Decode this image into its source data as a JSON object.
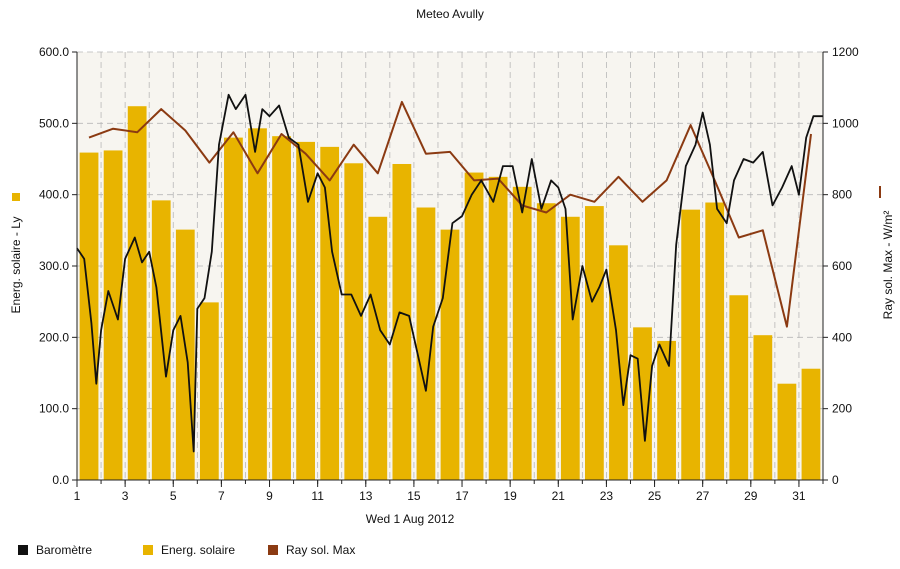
{
  "chart_data": {
    "type": "bar",
    "title": "Meteo  Avully",
    "xlabel": "Wed 1 Aug 2012",
    "ylabel_left": "Energ. solaire - Ly",
    "ylabel_right": "Ray sol. Max - W/m²",
    "ylim_left": [
      0,
      600
    ],
    "ylim_right": [
      0,
      1200
    ],
    "y_ticks_left": [
      "0.0",
      "100.0",
      "200.0",
      "300.0",
      "400.0",
      "500.0",
      "600.0"
    ],
    "y_ticks_right": [
      "0",
      "200",
      "400",
      "600",
      "800",
      "1000",
      "1200"
    ],
    "x_ticks": [
      "1",
      "3",
      "5",
      "7",
      "9",
      "11",
      "13",
      "15",
      "17",
      "19",
      "21",
      "23",
      "25",
      "27",
      "29",
      "31"
    ],
    "days": [
      1,
      2,
      3,
      4,
      5,
      6,
      7,
      8,
      9,
      10,
      11,
      12,
      13,
      14,
      15,
      16,
      17,
      18,
      19,
      20,
      21,
      22,
      23,
      24,
      25,
      26,
      27,
      28,
      29,
      30,
      31,
      32
    ],
    "grid": true,
    "legend_position": "bottom",
    "series": [
      {
        "name": "Energ. solaire",
        "kind": "bar",
        "axis": "left",
        "color": "#E8B400",
        "values": [
          459,
          462,
          524,
          392,
          351,
          249,
          480,
          493,
          482,
          474,
          467,
          444,
          369,
          443,
          382,
          351,
          431,
          425,
          411,
          388,
          369,
          384,
          329,
          214,
          195,
          379,
          389,
          259,
          203,
          135,
          156
        ]
      },
      {
        "name": "Ray sol. Max",
        "kind": "line",
        "axis": "right",
        "color": "#8B3A12",
        "values": [
          [
            1.5,
            960
          ],
          [
            2.5,
            985
          ],
          [
            3.5,
            975
          ],
          [
            4.5,
            1040
          ],
          [
            5.5,
            980
          ],
          [
            6.5,
            890
          ],
          [
            7.5,
            975
          ],
          [
            8.5,
            860
          ],
          [
            9.5,
            970
          ],
          [
            10.5,
            915
          ],
          [
            11.5,
            840
          ],
          [
            12.5,
            940
          ],
          [
            13.5,
            860
          ],
          [
            14.5,
            1060
          ],
          [
            15.5,
            915
          ],
          [
            16.5,
            920
          ],
          [
            17.5,
            840
          ],
          [
            18.5,
            845
          ],
          [
            19.5,
            770
          ],
          [
            20.5,
            750
          ],
          [
            21.5,
            800
          ],
          [
            22.5,
            780
          ],
          [
            23.5,
            850
          ],
          [
            24.5,
            780
          ],
          [
            25.5,
            840
          ],
          [
            26.5,
            995
          ],
          [
            27.5,
            840
          ],
          [
            28.5,
            680
          ],
          [
            29.5,
            700
          ],
          [
            30.5,
            430
          ],
          [
            31.5,
            970
          ]
        ]
      },
      {
        "name": "Baromètre",
        "kind": "line",
        "axis": "left",
        "color": "#111111",
        "values": [
          [
            1.0,
            325
          ],
          [
            1.3,
            310
          ],
          [
            1.6,
            220
          ],
          [
            1.8,
            135
          ],
          [
            2.0,
            210
          ],
          [
            2.3,
            265
          ],
          [
            2.7,
            225
          ],
          [
            3.0,
            310
          ],
          [
            3.4,
            340
          ],
          [
            3.7,
            305
          ],
          [
            4.0,
            320
          ],
          [
            4.3,
            270
          ],
          [
            4.7,
            145
          ],
          [
            5.0,
            210
          ],
          [
            5.3,
            230
          ],
          [
            5.6,
            165
          ],
          [
            5.85,
            40
          ],
          [
            6.0,
            240
          ],
          [
            6.3,
            255
          ],
          [
            6.6,
            320
          ],
          [
            6.9,
            470
          ],
          [
            7.3,
            540
          ],
          [
            7.6,
            520
          ],
          [
            8.0,
            540
          ],
          [
            8.4,
            460
          ],
          [
            8.7,
            520
          ],
          [
            9.0,
            510
          ],
          [
            9.4,
            525
          ],
          [
            9.8,
            480
          ],
          [
            10.2,
            470
          ],
          [
            10.6,
            390
          ],
          [
            11.0,
            430
          ],
          [
            11.3,
            410
          ],
          [
            11.6,
            320
          ],
          [
            12.0,
            260
          ],
          [
            12.4,
            260
          ],
          [
            12.8,
            230
          ],
          [
            13.2,
            260
          ],
          [
            13.6,
            210
          ],
          [
            14.0,
            190
          ],
          [
            14.4,
            235
          ],
          [
            14.8,
            230
          ],
          [
            15.2,
            170
          ],
          [
            15.5,
            125
          ],
          [
            15.8,
            215
          ],
          [
            16.2,
            255
          ],
          [
            16.6,
            360
          ],
          [
            17.0,
            370
          ],
          [
            17.4,
            400
          ],
          [
            17.8,
            420
          ],
          [
            18.3,
            390
          ],
          [
            18.7,
            440
          ],
          [
            19.1,
            440
          ],
          [
            19.5,
            375
          ],
          [
            19.9,
            450
          ],
          [
            20.3,
            380
          ],
          [
            20.7,
            420
          ],
          [
            21.0,
            410
          ],
          [
            21.3,
            380
          ],
          [
            21.6,
            225
          ],
          [
            22.0,
            300
          ],
          [
            22.4,
            250
          ],
          [
            22.7,
            270
          ],
          [
            23.0,
            295
          ],
          [
            23.4,
            210
          ],
          [
            23.7,
            105
          ],
          [
            24.0,
            175
          ],
          [
            24.3,
            170
          ],
          [
            24.6,
            55
          ],
          [
            24.9,
            160
          ],
          [
            25.2,
            190
          ],
          [
            25.6,
            160
          ],
          [
            25.9,
            330
          ],
          [
            26.3,
            440
          ],
          [
            26.7,
            470
          ],
          [
            27.0,
            515
          ],
          [
            27.3,
            470
          ],
          [
            27.6,
            380
          ],
          [
            28.0,
            360
          ],
          [
            28.3,
            420
          ],
          [
            28.7,
            450
          ],
          [
            29.1,
            445
          ],
          [
            29.5,
            460
          ],
          [
            29.9,
            385
          ],
          [
            30.3,
            410
          ],
          [
            30.7,
            440
          ],
          [
            31.0,
            400
          ],
          [
            31.3,
            480
          ],
          [
            31.6,
            510
          ],
          [
            32.0,
            510
          ]
        ]
      }
    ]
  },
  "legend": [
    {
      "name": "Baromètre",
      "color": "#111111"
    },
    {
      "name": "Energ. solaire",
      "color": "#E8B400"
    },
    {
      "name": "Ray sol. Max",
      "color": "#8B3A12"
    }
  ]
}
